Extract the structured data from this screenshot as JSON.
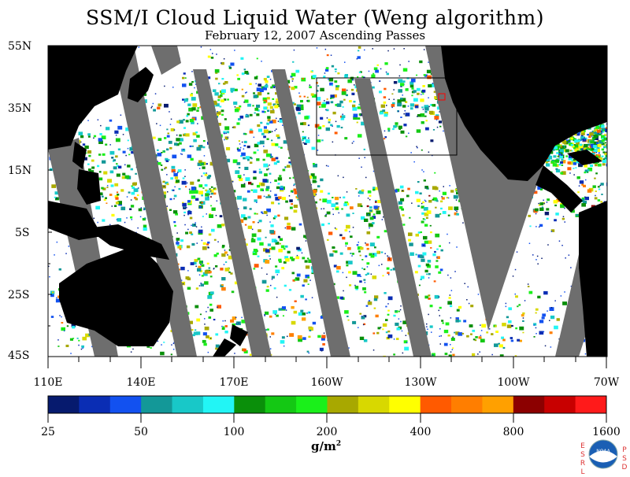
{
  "title": "SSM/I Cloud Liquid Water (Weng algorithm)",
  "subtitle": "February 12, 2007  Ascending Passes",
  "lat_labels": [
    "55N",
    "35N",
    "15N",
    "5S",
    "25S",
    "45S"
  ],
  "lon_labels": [
    "110E",
    "140E",
    "170E",
    "160W",
    "130W",
    "100W",
    "70W"
  ],
  "colorbar": {
    "labels": [
      "25",
      "50",
      "100",
      "200",
      "400",
      "800",
      "1600"
    ],
    "colors": [
      "#061a6e",
      "#0a2db4",
      "#1251f0",
      "#139898",
      "#18c8c8",
      "#22f5f5",
      "#0a8f0a",
      "#14c814",
      "#1af01a",
      "#a8a800",
      "#d8d800",
      "#ffff00",
      "#ff5a00",
      "#ff7e00",
      "#ffa000",
      "#8c0000",
      "#c80000",
      "#ff1a1a"
    ],
    "units_base": "g/m",
    "units_exp": "2"
  },
  "logo": {
    "left_letters": [
      "E",
      "S",
      "R",
      "L"
    ],
    "right_letters": [
      "P",
      "S",
      "D"
    ],
    "center": "NOAA"
  },
  "colors": {
    "land": "#000000",
    "swath_gap": "#6e6e6e",
    "ocean_clear": "#ffffff",
    "box": "#000000",
    "marker": "#ff0000"
  }
}
